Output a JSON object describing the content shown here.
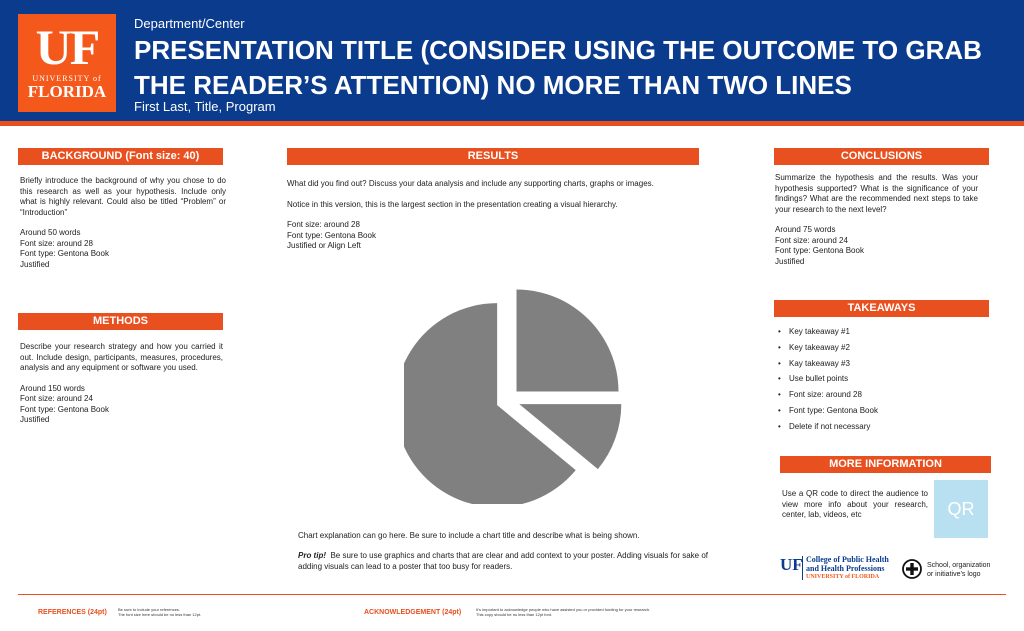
{
  "header": {
    "logo": {
      "uf": "UF",
      "university": "UNIVERSITY of",
      "florida": "FLORIDA"
    },
    "department": "Department/Center",
    "title": "PRESENTATION TITLE (CONSIDER USING THE OUTCOME TO GRAB THE READER’S ATTENTION) NO MORE THAN TWO LINES",
    "authors": "First Last, Title, Program"
  },
  "background": {
    "heading": "BACKGROUND (Font size: 40)",
    "body": "Briefly introduce the background of why you chose to do this research as well as your hypothesis. Include only what is highly relevant. Could also be titled “Problem” or “Introduction”",
    "spec1": "Around 50 words",
    "spec2": "Font size: around 28",
    "spec3": "Font type: Gentona Book",
    "spec4": "Justified"
  },
  "methods": {
    "heading": "METHODS",
    "body": "Describe your research strategy and how you carried it out. Include design, participants, measures, procedures, analysis and any equipment or software you used.",
    "spec1": "Around 150 words",
    "spec2": "Font size: around 24",
    "spec3": "Font type: Gentona Book",
    "spec4": "Justified"
  },
  "results": {
    "heading": "RESULTS",
    "line1": "What did you find out? Discuss your data analysis and include any supporting charts, graphs or images.",
    "line2": "Notice in this version, this is the largest section in the presentation creating a visual hierarchy.",
    "spec1": "Font size: around 28",
    "spec2": "Font type: Gentona Book",
    "spec3": "Justified or Align Left",
    "chart_explanation": "Chart explanation can go here. Be sure to include a chart title and describe what is being shown.",
    "protip_label": "Pro tip!",
    "protip_text": "Be sure to use graphics and charts that are clear and add context to your poster. Adding visuals for sake of adding visuals can lead to a poster that too busy for readers."
  },
  "chart_data": {
    "type": "pie",
    "values": [
      25,
      11,
      64
    ],
    "color": "#808080",
    "exploded": true
  },
  "conclusions": {
    "heading": "CONCLUSIONS",
    "body": "Summarize the hypothesis and the results. Was your hypothesis supported? What is the significance of your findings? What are the recommended next steps to take your research to the next level?",
    "spec1": "Around 75 words",
    "spec2": "Font size: around 24",
    "spec3": "Font type: Gentona Book",
    "spec4": "Justified"
  },
  "takeaways": {
    "heading": "TAKEAWAYS",
    "items": [
      "Key takeaway #1",
      "Key takeaway #2",
      "Kay takeaway #3",
      "Use bullet points",
      "Font size: around 28",
      "Font type: Gentona Book",
      "Delete if not necessary"
    ]
  },
  "more_info": {
    "heading": "MORE INFORMATION",
    "body": "Use a QR code to direct the audience to view more info about your research, center, lab, videos, etc",
    "qr_label": "QR"
  },
  "logos": {
    "cphhp_uf": "UF",
    "cphhp_line1": "College of Public Health",
    "cphhp_line2": "and Health Professions",
    "cphhp_univ": "UNIVERSITY of FLORIDA",
    "school_line1": "School, organization",
    "school_line2": "or initiative’s logo"
  },
  "footer": {
    "references_label": "REFERENCES (24pt)",
    "references_note1": "Be sure to include your references.",
    "references_note2": "The font size here should be no less than 12pt.",
    "ack_label": "ACKNOWLEDGEMENT (24pt)",
    "ack_note1": "It’s important to acknowledge people who have assisted you or provided funding for your research.",
    "ack_note2": "This copy should be no less than 12pt font."
  },
  "colors": {
    "brand_blue": "#0a3b8c",
    "brand_orange": "#e8501f",
    "pie_gray": "#808080"
  }
}
